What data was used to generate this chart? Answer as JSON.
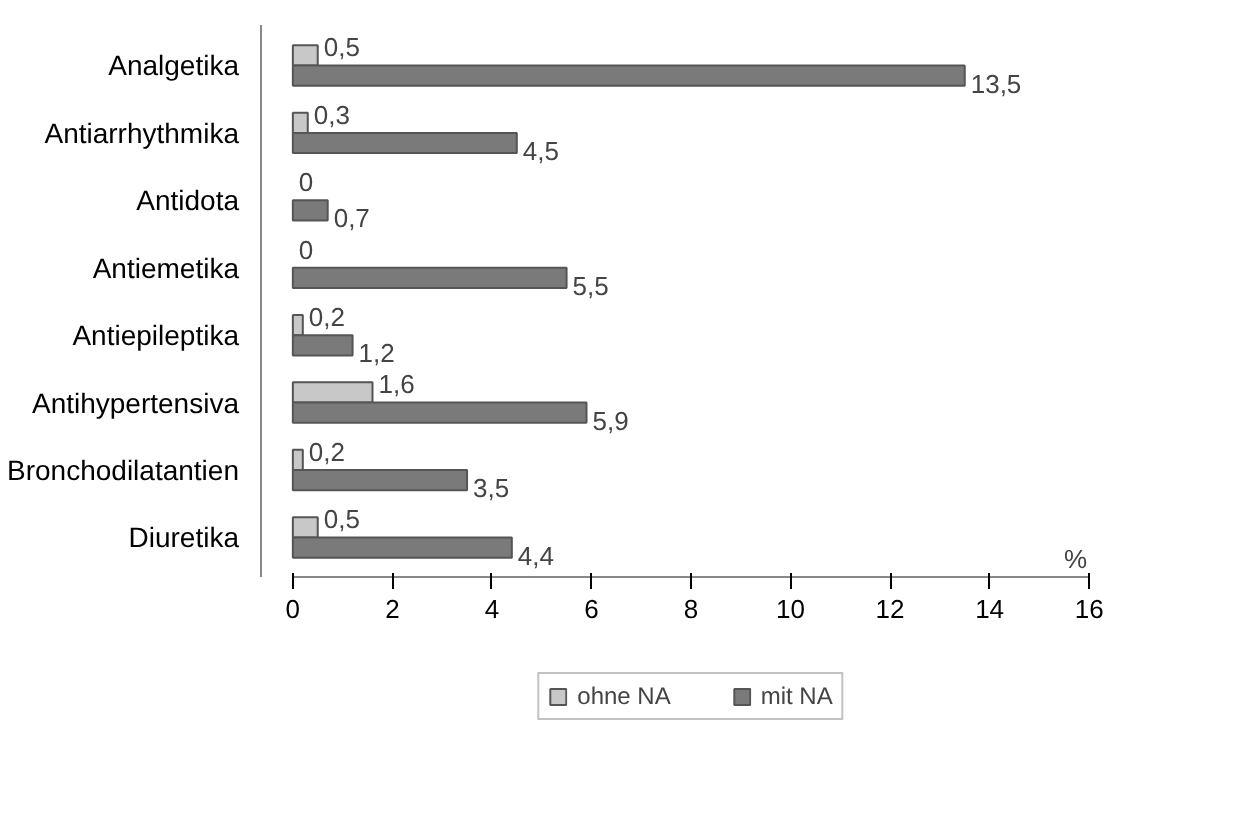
{
  "chart_data": {
    "type": "bar",
    "orientation": "horizontal",
    "xlabel": "%",
    "categories": [
      "Analgetika",
      "Antiarrhythmika",
      "Antidota",
      "Antiemetika",
      "Antiepileptika",
      "Antihypertensiva",
      "Bronchodilatantien",
      "Diuretika"
    ],
    "series": [
      {
        "name": "ohne NA",
        "color": "#c8c8c8",
        "values": [
          0.5,
          0.3,
          0,
          0,
          0.2,
          1.6,
          0.2,
          0.5
        ],
        "value_labels": [
          "0,5",
          "0,3",
          "0",
          "0",
          "0,2",
          "1,6",
          "0,2",
          "0,5"
        ]
      },
      {
        "name": "mit NA",
        "color": "#7a7a7a",
        "values": [
          13.5,
          4.5,
          0.7,
          5.5,
          1.2,
          5.9,
          3.5,
          4.4
        ],
        "value_labels": [
          "13,5",
          "4,5",
          "0,7",
          "5,5",
          "1,2",
          "5,9",
          "3,5",
          "4,4"
        ]
      }
    ],
    "xlim": [
      0,
      16
    ],
    "xticks": [
      0,
      2,
      4,
      6,
      8,
      10,
      12,
      14,
      16
    ],
    "grid": false,
    "legend": "bottom"
  }
}
